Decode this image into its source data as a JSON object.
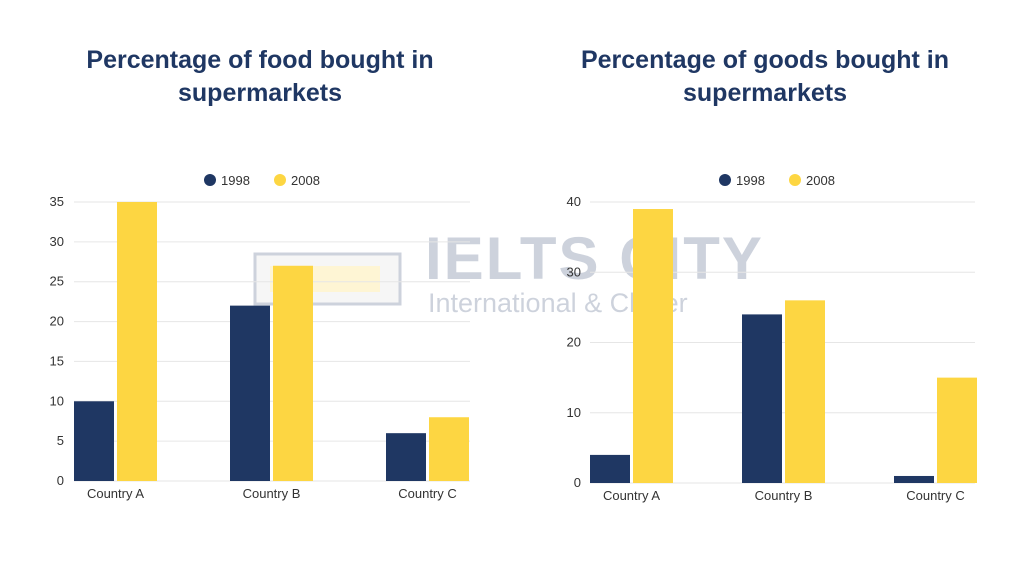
{
  "colors": {
    "series_1998": "#1f3763",
    "series_2008": "#fdd642",
    "title": "#1f3763",
    "grid": "#e6e6e6"
  },
  "watermark": {
    "line1": "IELTS CITY",
    "line2": "International & Clever"
  },
  "chart_data": [
    {
      "type": "bar",
      "title": "Percentage of food bought in supermarkets",
      "categories": [
        "Country A",
        "Country B",
        "Country C"
      ],
      "series": [
        {
          "name": "1998",
          "values": [
            10,
            22,
            6
          ]
        },
        {
          "name": "2008",
          "values": [
            35,
            27,
            8
          ]
        }
      ],
      "yticks": [
        0,
        5,
        10,
        15,
        20,
        25,
        30,
        35
      ],
      "ylim": [
        0,
        35
      ],
      "xlabel": "",
      "ylabel": "",
      "grid": true,
      "legend": "top-center"
    },
    {
      "type": "bar",
      "title": "Percentage of goods bought in supermarkets",
      "categories": [
        "Country A",
        "Country B",
        "Country C"
      ],
      "series": [
        {
          "name": "1998",
          "values": [
            4,
            24,
            1
          ]
        },
        {
          "name": "2008",
          "values": [
            39,
            26,
            15
          ]
        }
      ],
      "yticks": [
        0,
        10,
        20,
        30,
        40
      ],
      "ylim": [
        0,
        40
      ],
      "xlabel": "",
      "ylabel": "",
      "grid": true,
      "legend": "top-center"
    }
  ]
}
